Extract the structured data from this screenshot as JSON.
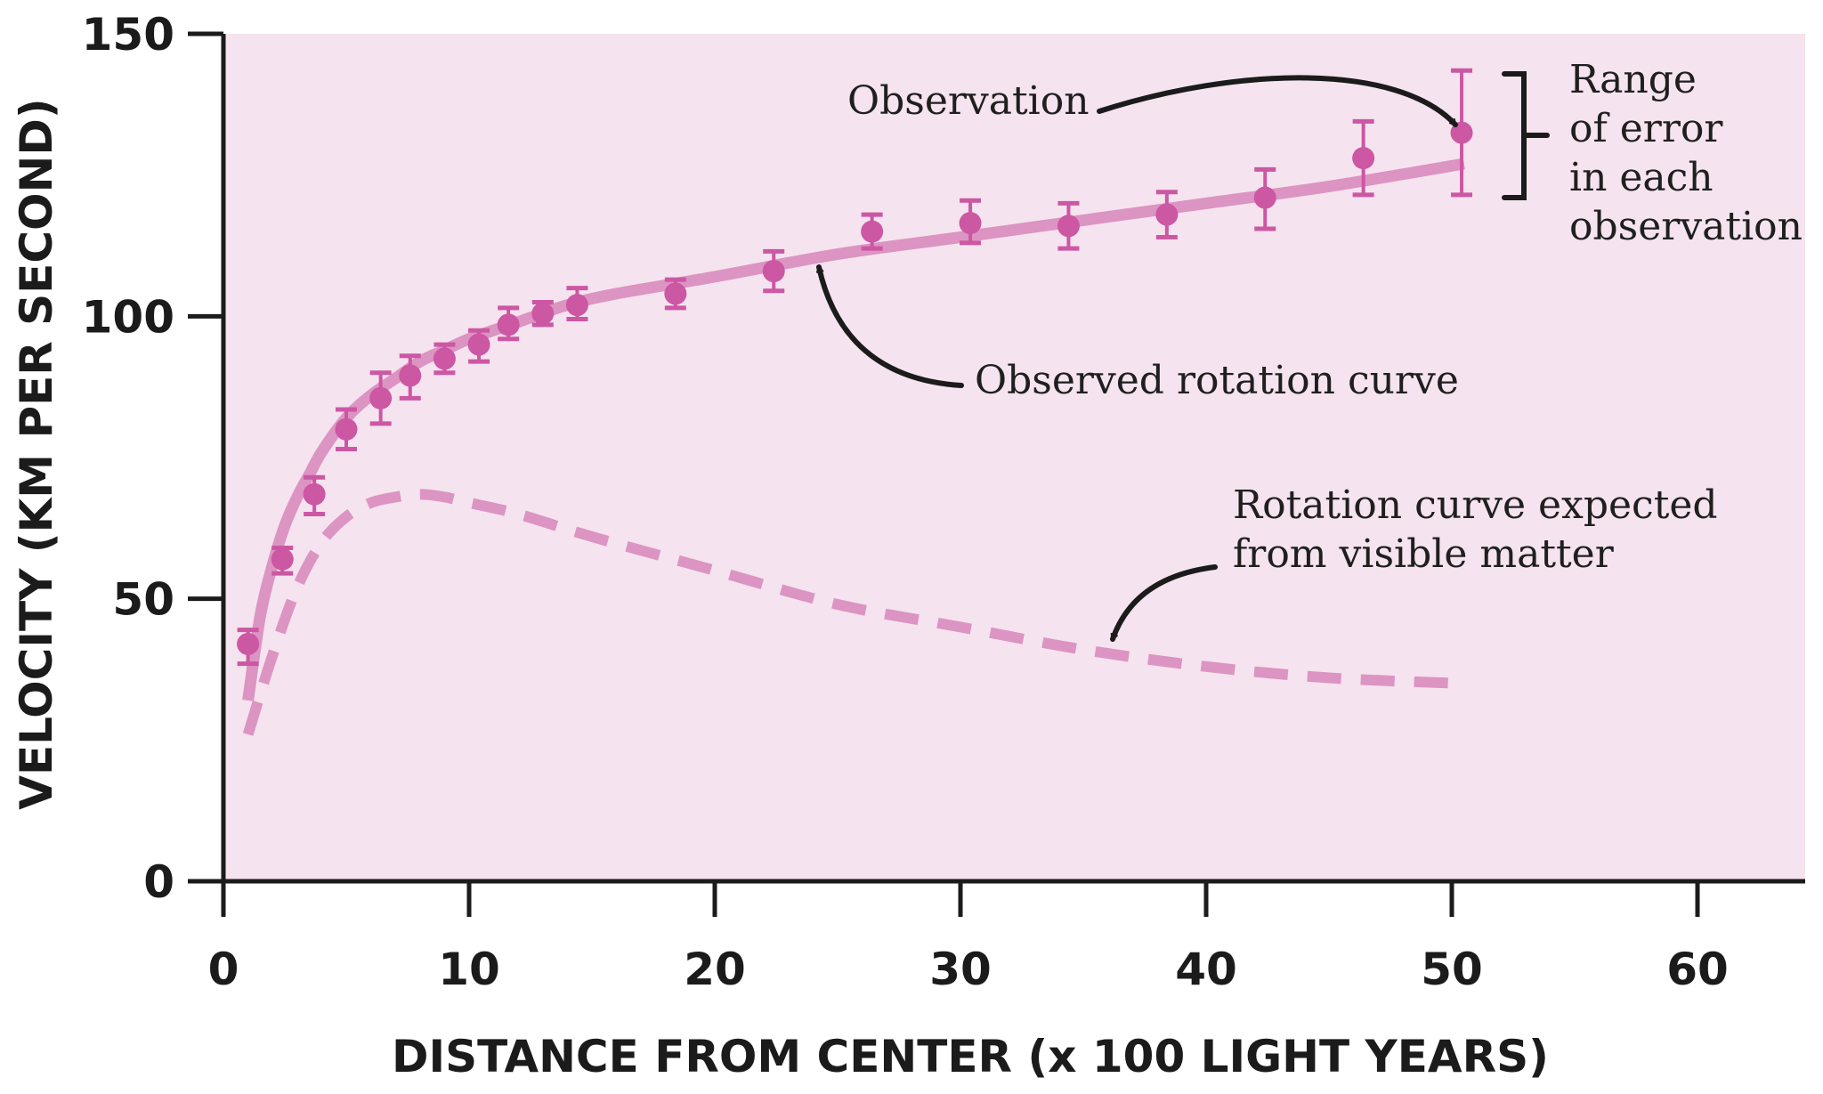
{
  "chart_data": {
    "type": "line",
    "xlabel": "DISTANCE FROM CENTER (x 100 LIGHT YEARS)",
    "ylabel": "VELOCITY (KM PER SECOND)",
    "xlim": [
      0,
      64
    ],
    "ylim": [
      0,
      150
    ],
    "x_ticks": [
      0,
      10,
      20,
      30,
      40,
      50,
      60
    ],
    "y_ticks": [
      0,
      50,
      100,
      150
    ],
    "grid": false,
    "colors": {
      "background": "#f5e3ef",
      "observed_curve": "#dc94c2",
      "expected_curve": "#dc94c2",
      "points": "#cc57a3",
      "axis": "#1b1b1b",
      "arrows": "#1b1b1b"
    },
    "series": [
      {
        "name": "Observed rotation curve",
        "style": "solid",
        "x": [
          1,
          1.5,
          2,
          2.5,
          3,
          3.5,
          4,
          5,
          6,
          7,
          8,
          9,
          10,
          12,
          14,
          16,
          20,
          25,
          30,
          35,
          40,
          45,
          50.5
        ],
        "y": [
          32,
          47,
          56,
          63,
          68,
          72,
          76,
          82,
          86,
          89,
          92,
          94,
          96,
          99,
          102,
          104,
          107,
          111,
          114,
          117,
          120,
          123,
          127
        ]
      },
      {
        "name": "Rotation curve expected from visible matter",
        "style": "dashed",
        "x": [
          1,
          2,
          3,
          4,
          5,
          6,
          7,
          8,
          9,
          10,
          12,
          15,
          20,
          25,
          30,
          35,
          40,
          45,
          50.5
        ],
        "y": [
          26,
          40,
          52,
          60,
          64.5,
          67,
          68,
          68.5,
          68,
          67,
          65,
          61,
          55,
          49,
          45,
          41,
          38,
          36,
          35
        ]
      },
      {
        "name": "Observation",
        "type": "scatter",
        "x": [
          1,
          2.4,
          3.7,
          5,
          6.4,
          7.6,
          9,
          10.4,
          11.6,
          13,
          14.4,
          18.4,
          22.4,
          26.4,
          30.4,
          34.4,
          38.4,
          42.4,
          46.4,
          50.4
        ],
        "y": [
          42,
          57,
          68.5,
          80,
          85.5,
          89.5,
          92.5,
          95,
          98.5,
          100.5,
          102,
          104,
          108,
          115,
          116.5,
          116,
          118,
          121,
          128,
          132.5
        ],
        "error_low": [
          38.5,
          54.5,
          65,
          76.5,
          81,
          85.5,
          90,
          92,
          96,
          98.5,
          99.5,
          101.5,
          104.5,
          112,
          113,
          112,
          114,
          115.5,
          121.5,
          121.5
        ],
        "error_high": [
          44.5,
          59,
          71.5,
          83.5,
          90,
          93,
          95,
          97.5,
          101.5,
          102.5,
          105,
          106.5,
          111.5,
          118,
          120.5,
          120,
          122,
          126,
          134.5,
          143.5
        ]
      }
    ],
    "annotations": {
      "observation": "Observation",
      "observed_curve": "Observed rotation curve",
      "expected_line1": "Rotation curve expected",
      "expected_line2": "from visible matter",
      "range_line1": "Range",
      "range_line2": "of error",
      "range_line3": "in each",
      "range_line4": "observation"
    }
  }
}
